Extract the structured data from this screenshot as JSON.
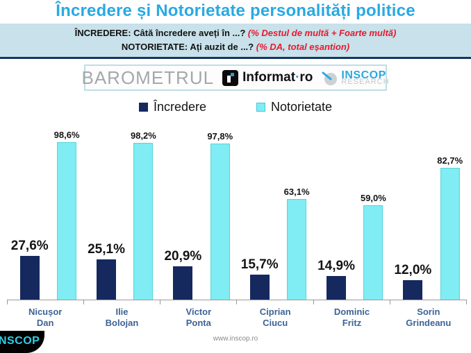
{
  "page": {
    "title": "Încredere și Notorietate personalități politice"
  },
  "subtitle": {
    "line1_label": "ÎNCREDERE:",
    "line1_text": "Câtă încredere aveți în ...?",
    "line1_note": "(% Destul de multă + Foarte multă)",
    "line2_label": "NOTORIETATE:",
    "line2_text": "Ați auzit de ...?",
    "line2_note": "(% DA, total eșantion)"
  },
  "logos": {
    "barometrul": "BAROMETRUL",
    "informat_part1": "Informat",
    "informat_dot": "·",
    "informat_part2": "ro",
    "inscop_line1": "INSCOP",
    "inscop_line2": "RESEARCH"
  },
  "legend": {
    "incredere": "Încredere",
    "notorietate": "Notorietate"
  },
  "colors": {
    "title_blue": "#29A9E1",
    "band_bg": "#C8E1EA",
    "band_border": "#17365D",
    "note_red": "#E8192C",
    "incredere_navy": "#15295F",
    "notorietate_cyan": "#7FEDF3",
    "category_label_blue": "#3D6397"
  },
  "chart_data": {
    "type": "bar",
    "categories": [
      [
        "Nicușor",
        "Dan"
      ],
      [
        "Ilie",
        "Bolojan"
      ],
      [
        "Victor",
        "Ponta"
      ],
      [
        "Ciprian",
        "Ciucu"
      ],
      [
        "Dominic",
        "Fritz"
      ],
      [
        "Sorin",
        "Grindeanu"
      ]
    ],
    "series": [
      {
        "name": "Încredere",
        "color": "#15295F",
        "values": [
          27.6,
          25.1,
          20.9,
          15.7,
          14.9,
          12.0
        ],
        "labels": [
          "27,6%",
          "25,1%",
          "20,9%",
          "15,7%",
          "14,9%",
          "12,0%"
        ]
      },
      {
        "name": "Notorietate",
        "color": "#7FEDF3",
        "values": [
          98.6,
          98.2,
          97.8,
          63.1,
          59.0,
          82.7
        ],
        "labels": [
          "98,6%",
          "98,2%",
          "97,8%",
          "63,1%",
          "59,0%",
          "82,7%"
        ]
      }
    ],
    "ylim": [
      0,
      105
    ],
    "grid": false,
    "legend_position": "top",
    "value_label_format": "percent-comma"
  },
  "footer": {
    "website": "www.inscop.ro",
    "badge": "INSCOP"
  }
}
